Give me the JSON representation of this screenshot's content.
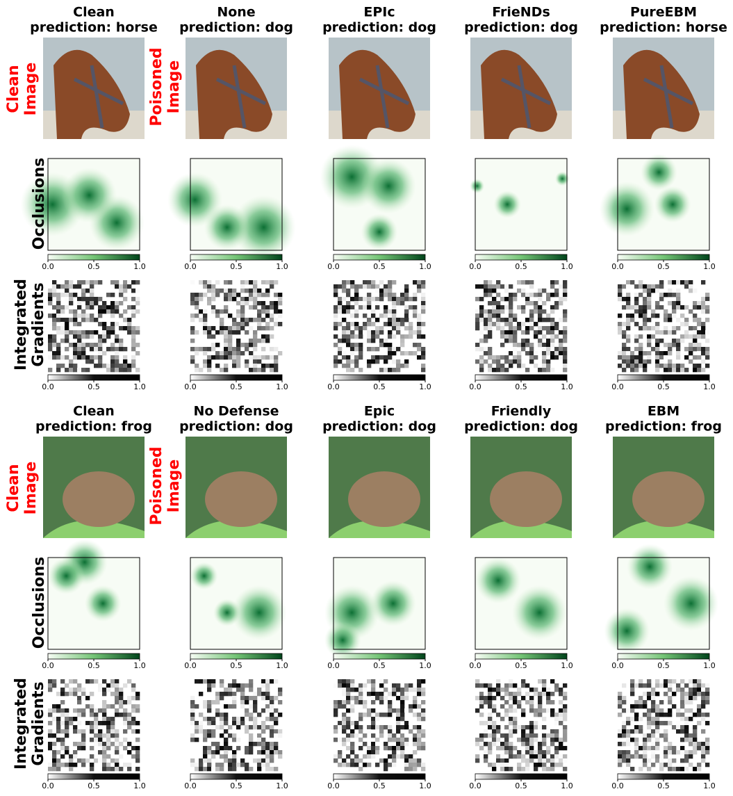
{
  "blocks": [
    {
      "columns": [
        {
          "name": "Clean",
          "prediction": "prediction: horse"
        },
        {
          "name": "None",
          "prediction": "prediction: dog"
        },
        {
          "name": "EPIc",
          "prediction": "prediction: dog"
        },
        {
          "name": "FrieNDs",
          "prediction": "prediction: dog"
        },
        {
          "name": "PureEBM",
          "prediction": "prediction: horse"
        }
      ],
      "row_labels": {
        "clean_image": [
          "Clean",
          "Image"
        ],
        "poisoned_image": [
          "Poisoned",
          "Image"
        ],
        "occlusions": "Occlusions",
        "integrated_gradients": [
          "Integrated",
          "Gradients"
        ]
      }
    },
    {
      "columns": [
        {
          "name": "Clean",
          "prediction": "prediction: frog"
        },
        {
          "name": "No Defense",
          "prediction": "prediction: dog"
        },
        {
          "name": "Epic",
          "prediction": "prediction: dog"
        },
        {
          "name": "Friendly",
          "prediction": "prediction: dog"
        },
        {
          "name": "EBM",
          "prediction": "prediction: frog"
        }
      ],
      "row_labels": {
        "clean_image": [
          "Clean",
          "Image"
        ],
        "poisoned_image": [
          "Poisoned",
          "Image"
        ],
        "occlusions": "Occlusions",
        "integrated_gradients": [
          "Integrated",
          "Gradients"
        ]
      }
    }
  ],
  "colorbar_ticks": [
    "0.0",
    "0.5",
    "1.0"
  ]
}
